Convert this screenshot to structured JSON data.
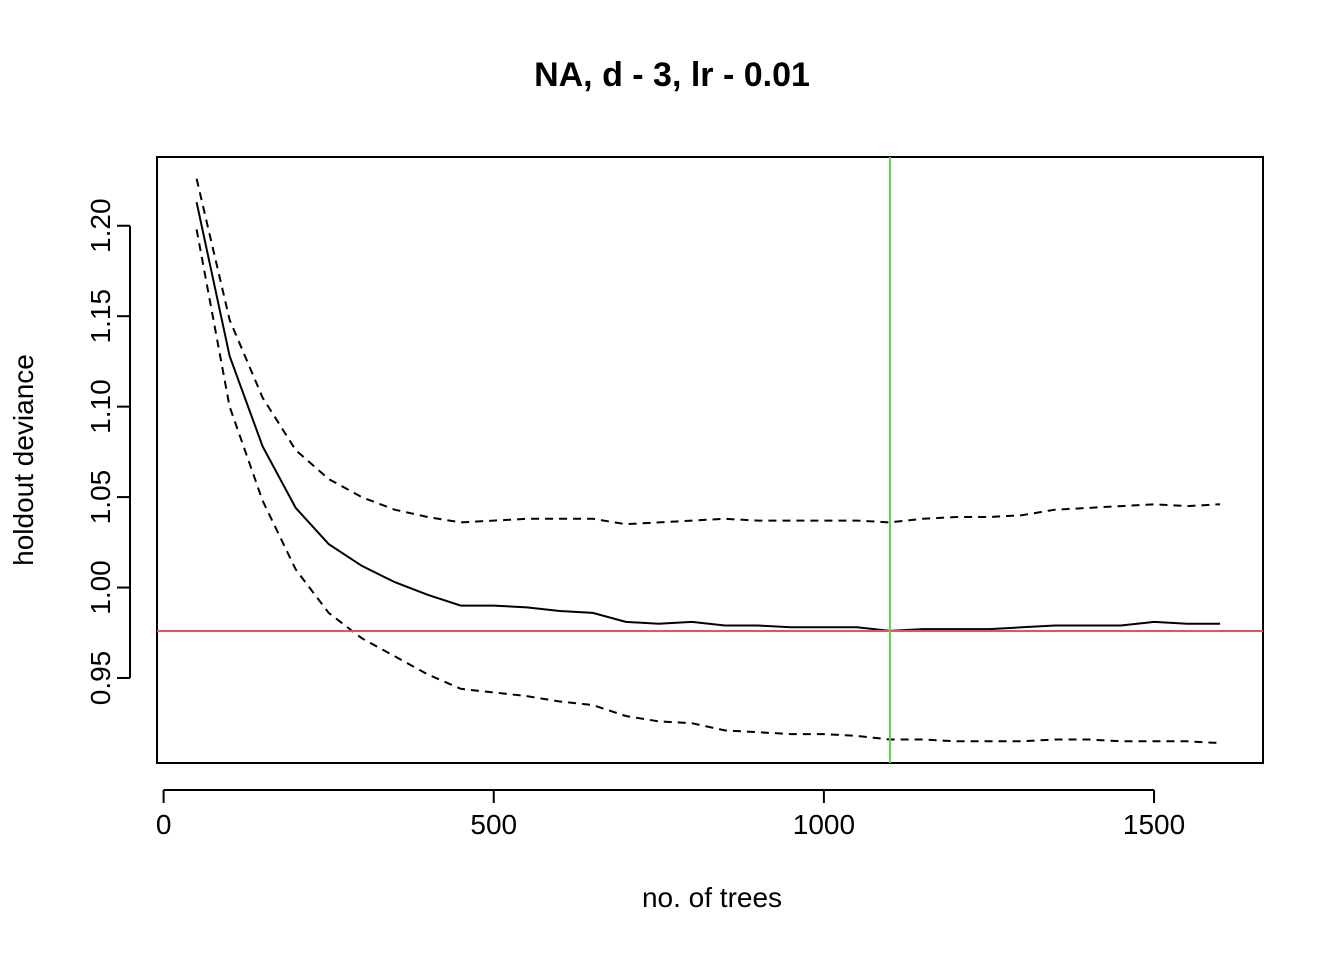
{
  "chart_data": {
    "type": "line",
    "title": "NA, d - 3, lr - 0.01",
    "xlabel": "no. of trees",
    "ylabel": "holdout deviance",
    "xlim": [
      -10,
      1665
    ],
    "ylim": [
      0.903,
      1.238
    ],
    "xticks": [
      0,
      500,
      1000,
      1500
    ],
    "yticks": [
      0.95,
      1.0,
      1.05,
      1.1,
      1.15,
      1.2
    ],
    "ytick_labels": [
      "0.95",
      "1.00",
      "1.05",
      "1.10",
      "1.15",
      "1.20"
    ],
    "x": [
      50,
      100,
      150,
      200,
      250,
      300,
      350,
      400,
      450,
      500,
      550,
      600,
      650,
      700,
      750,
      800,
      850,
      900,
      950,
      1000,
      1050,
      1100,
      1150,
      1200,
      1250,
      1300,
      1350,
      1400,
      1450,
      1500,
      1550,
      1600
    ],
    "series": [
      {
        "style": "solid",
        "values": [
          1.213,
          1.128,
          1.078,
          1.044,
          1.024,
          1.012,
          1.003,
          0.996,
          0.99,
          0.99,
          0.989,
          0.987,
          0.986,
          0.981,
          0.98,
          0.981,
          0.979,
          0.979,
          0.978,
          0.978,
          0.978,
          0.976,
          0.977,
          0.977,
          0.977,
          0.978,
          0.979,
          0.979,
          0.979,
          0.981,
          0.98,
          0.98
        ]
      },
      {
        "style": "dashed",
        "values": [
          1.226,
          1.148,
          1.105,
          1.076,
          1.06,
          1.05,
          1.043,
          1.039,
          1.036,
          1.037,
          1.038,
          1.038,
          1.038,
          1.035,
          1.036,
          1.037,
          1.038,
          1.037,
          1.037,
          1.037,
          1.037,
          1.036,
          1.038,
          1.039,
          1.039,
          1.04,
          1.043,
          1.044,
          1.045,
          1.046,
          1.045,
          1.046
        ]
      },
      {
        "style": "dashed",
        "values": [
          1.198,
          1.1,
          1.048,
          1.01,
          0.986,
          0.972,
          0.962,
          0.952,
          0.944,
          0.942,
          0.94,
          0.937,
          0.935,
          0.929,
          0.926,
          0.925,
          0.921,
          0.92,
          0.919,
          0.919,
          0.918,
          0.916,
          0.916,
          0.915,
          0.915,
          0.915,
          0.916,
          0.916,
          0.915,
          0.915,
          0.915,
          0.914
        ]
      }
    ],
    "reference_lines": [
      {
        "orientation": "horizontal",
        "value": 0.976,
        "color": "#e0546a"
      },
      {
        "orientation": "vertical",
        "value": 1100,
        "color": "#61d04f"
      }
    ],
    "grid": false,
    "legend": "none"
  }
}
